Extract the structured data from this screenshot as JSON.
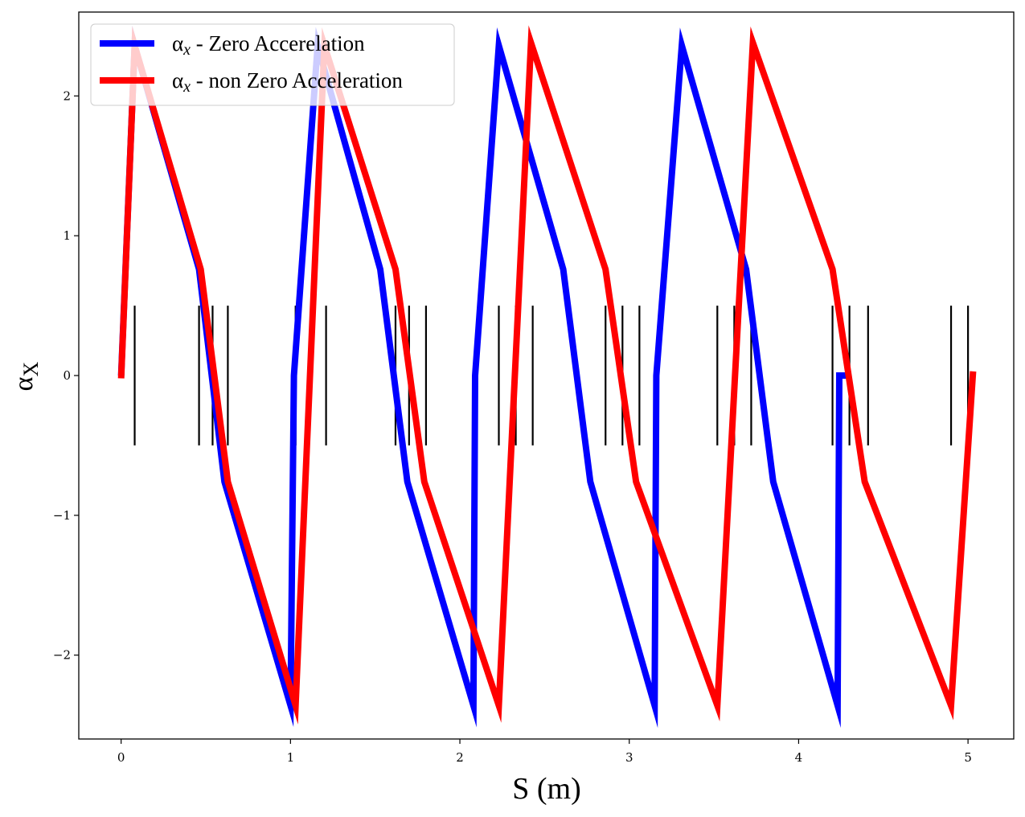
{
  "chart_data": {
    "type": "line",
    "xlabel": "S (m)",
    "ylabel": "α_X",
    "xlim": [
      -0.25,
      5.27
    ],
    "ylim": [
      -2.6,
      2.6
    ],
    "xticks": [
      0,
      1,
      2,
      3,
      4,
      5
    ],
    "xtick_labels": [
      "0",
      "1",
      "2",
      "3",
      "4",
      "5"
    ],
    "yticks": [
      -2,
      -1,
      0,
      1,
      2
    ],
    "ytick_labels": [
      "−2",
      "−1",
      "0",
      "1",
      "2"
    ],
    "legend_position": "top-left",
    "series": [
      {
        "name": "αx - Zero Accerelation",
        "legend_symbol": "α",
        "legend_sub": "x",
        "legend_rest": " - Zero Accerelation",
        "color": "#0000ff",
        "x": [
          0.0,
          0.08,
          0.46,
          0.61,
          1.0,
          1.02,
          1.16,
          1.53,
          1.69,
          2.08,
          2.09,
          2.23,
          2.61,
          2.77,
          3.15,
          3.16,
          3.31,
          3.69,
          3.85,
          4.23,
          4.24,
          4.3
        ],
        "y": [
          0.0,
          2.36,
          0.76,
          -0.76,
          -2.36,
          0.0,
          2.36,
          0.76,
          -0.76,
          -2.36,
          0.0,
          2.36,
          0.76,
          -0.76,
          -2.36,
          0.0,
          2.36,
          0.76,
          -0.76,
          -2.36,
          0.0,
          0.0
        ]
      },
      {
        "name": "αx - non Zero Acceleration",
        "legend_symbol": "α",
        "legend_sub": "x",
        "legend_rest": " - non Zero Acceleration",
        "color": "#ff0000",
        "x": [
          0.0,
          0.08,
          0.47,
          0.63,
          1.03,
          1.2,
          1.62,
          1.79,
          2.23,
          2.42,
          2.86,
          3.04,
          3.52,
          3.73,
          4.2,
          4.39,
          4.9,
          5.03
        ],
        "y": [
          -0.02,
          2.36,
          0.76,
          -0.76,
          -2.36,
          2.36,
          0.76,
          -0.76,
          -2.36,
          2.38,
          0.76,
          -0.76,
          -2.36,
          2.38,
          0.76,
          -0.76,
          -2.36,
          0.03
        ]
      }
    ],
    "element_markers": {
      "y_range": [
        -0.5,
        0.5
      ],
      "x": [
        0.08,
        0.46,
        0.54,
        0.63,
        1.03,
        1.21,
        1.62,
        1.7,
        1.8,
        2.23,
        2.33,
        2.43,
        2.86,
        2.96,
        3.06,
        3.52,
        3.62,
        3.72,
        4.2,
        4.3,
        4.41,
        4.9,
        5.0
      ]
    }
  }
}
